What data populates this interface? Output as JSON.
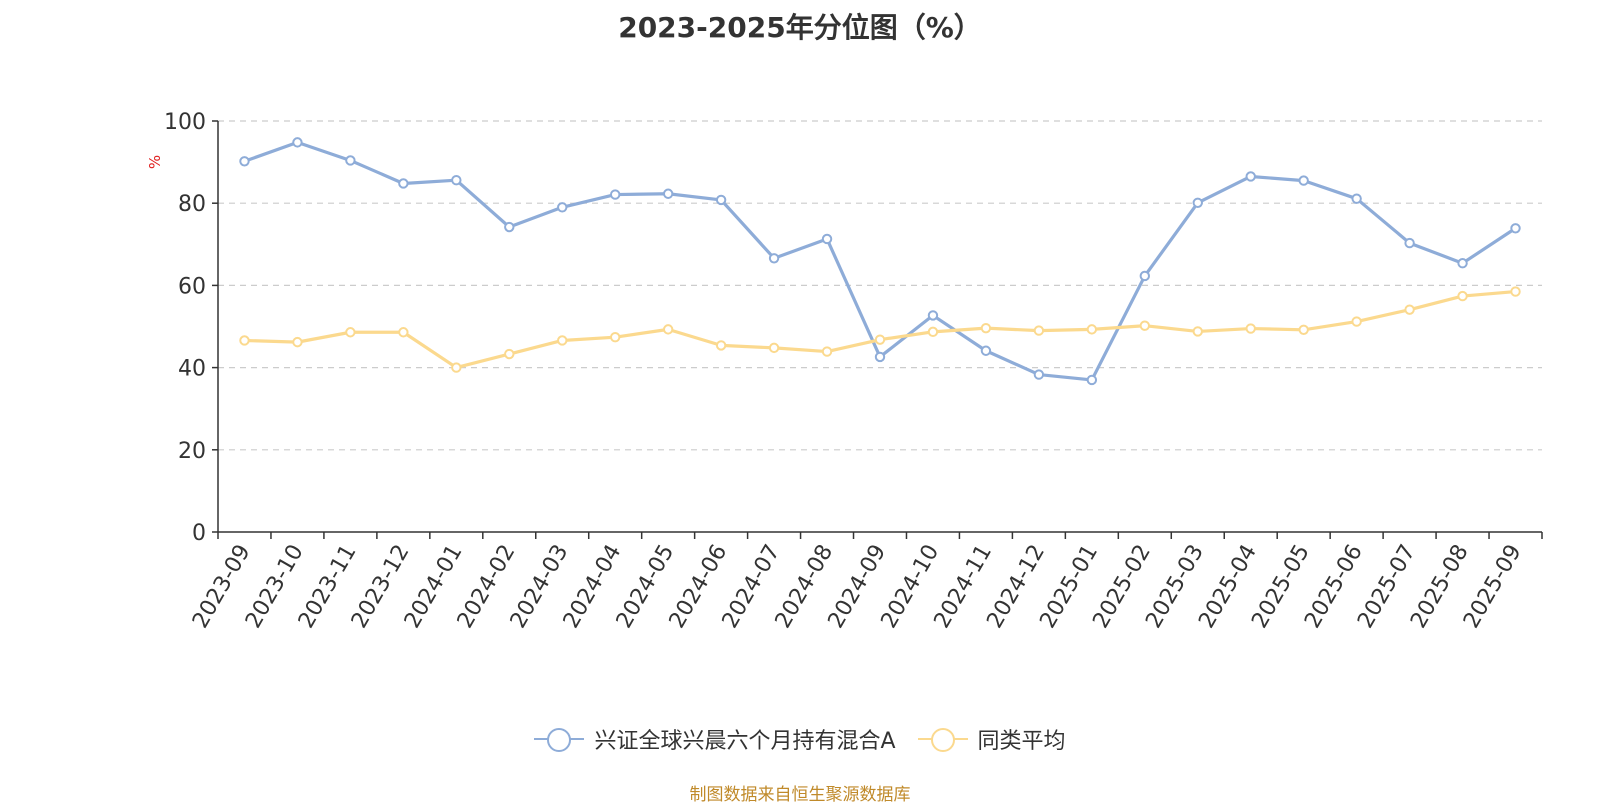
{
  "chart_data": {
    "type": "line",
    "title": "2023-2025年分位图（%）",
    "ylabel": "%",
    "xlabel": "",
    "ylim": [
      0,
      100
    ],
    "yticks": [
      0,
      20,
      40,
      60,
      80,
      100
    ],
    "grid": true,
    "legend_position": "bottom-center",
    "categories": [
      "2023-09",
      "2023-10",
      "2023-11",
      "2023-12",
      "2024-01",
      "2024-02",
      "2024-03",
      "2024-04",
      "2024-05",
      "2024-06",
      "2024-07",
      "2024-08",
      "2024-09",
      "2024-10",
      "2024-11",
      "2024-12",
      "2025-01",
      "2025-02",
      "2025-03",
      "2025-04",
      "2025-05",
      "2025-06",
      "2025-07",
      "2025-08",
      "2025-09"
    ],
    "series": [
      {
        "name": "兴证全球兴晨六个月持有混合A",
        "color": "#8eacd8",
        "values": [
          90.2,
          94.8,
          90.4,
          84.8,
          85.6,
          74.2,
          79.0,
          82.1,
          82.3,
          80.8,
          66.6,
          71.3,
          42.6,
          52.7,
          44.1,
          38.3,
          37.0,
          62.3,
          80.1,
          86.5,
          85.5,
          81.1,
          70.3,
          65.4,
          73.9
        ]
      },
      {
        "name": "同类平均",
        "color": "#fbd98e",
        "values": [
          46.6,
          46.2,
          48.6,
          48.6,
          40.0,
          43.3,
          46.6,
          47.4,
          49.3,
          45.4,
          44.8,
          43.9,
          46.8,
          48.7,
          49.6,
          49.0,
          49.3,
          50.2,
          48.8,
          49.5,
          49.2,
          51.2,
          54.1,
          57.4,
          58.5
        ]
      }
    ]
  },
  "source_note": "制图数据来自恒生聚源数据库"
}
